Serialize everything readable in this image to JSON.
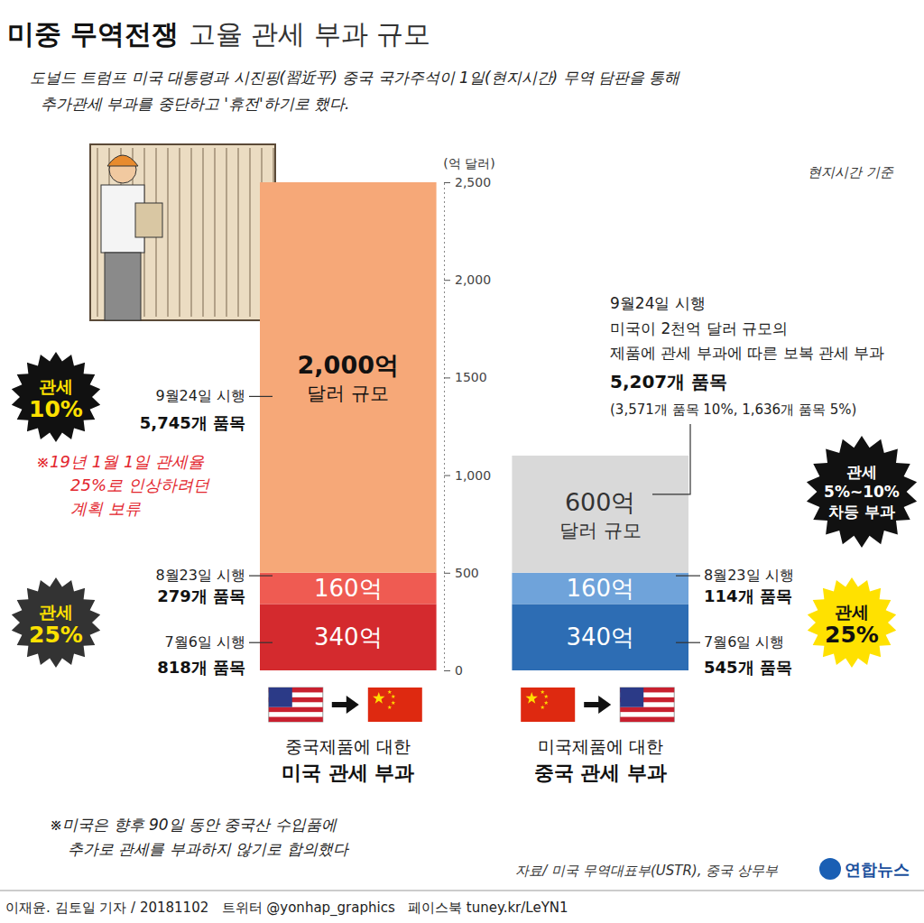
{
  "chart_data": {
    "type": "bar",
    "stacked": true,
    "data_labels": true,
    "title": "미중 무역전쟁 고율 관세 부과 규모",
    "subtitle": [
      "도널드 트럼프 미국 대통령과 시진핑(習近平) 중국 국가주석이 1일(현지시간) 무역 담판을 통해",
      "추가관세 부과를 중단하고 '휴전'하기로 했다."
    ],
    "note": "현지시간 기준",
    "y_label": "(억 달러)",
    "categories": [
      "중국제품에 대한 미국 관세 부과",
      "미국제품에 대한 중국 관세 부과"
    ],
    "ylim": [
      0,
      2500
    ],
    "yticks": [
      0,
      500,
      {
        "value": 1000,
        "label": "1,000"
      },
      1500,
      {
        "value": 2000,
        "label": "2,000"
      },
      {
        "value": 2500,
        "label": "2,500"
      }
    ],
    "series": [
      {
        "name": "7월6일 시행",
        "values": [
          340,
          340
        ],
        "value_labels": [
          "340억",
          "340억"
        ],
        "colors": [
          "#d42a2e",
          "#2d6db4"
        ],
        "items": [
          "818개 품목",
          "545개 품목"
        ]
      },
      {
        "name": "8월23일 시행",
        "values": [
          160,
          160
        ],
        "value_labels": [
          "160억",
          "160억"
        ],
        "colors": [
          "#ef5b52",
          "#6fa3da"
        ],
        "items": [
          "279개 품목",
          "114개 품목"
        ]
      },
      {
        "name": "9월24일 시행",
        "values": [
          2000,
          600
        ],
        "value_labels": [
          "2,000억 달러 규모",
          "600억 달러 규모"
        ],
        "colors": [
          "#f6a878",
          "#d9d9d9"
        ],
        "items": [
          "5,745개 품목",
          "5,207개 품목"
        ]
      }
    ],
    "annotations": {
      "tariff_badges": [
        "관세 10%",
        "관세 25%",
        "관세 5%~10% 차등 부과",
        "관세 25%"
      ],
      "postponed_note": [
        "※19년 1월 1일 관세율",
        "25%로 인상하려던",
        "계획 보류"
      ],
      "retaliation_note": [
        "미국이 2천억 달러 규모의",
        "제품에 관세 부과에 따른 보복 관세 부과"
      ],
      "retaliation_breakdown": "(3,571개 품목 10%, 1,636개 품목 5%)",
      "truce_note": [
        "※미국은 향후 90일 동안 중국산 수입품에",
        "추가로 관세를 부과하지 않기로 합의했다"
      ]
    },
    "source": "자료/ 미국 무역대표부(USTR), 중국 상무부",
    "byline": "이재윤. 김토일 기자 / 20181102   트위터 @yonhap_graphics   페이스북 tuney.kr/LeYN1",
    "logo": "연합뉴스"
  }
}
